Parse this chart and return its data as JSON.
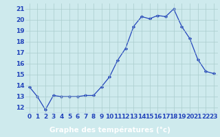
{
  "hours": [
    0,
    1,
    2,
    3,
    4,
    5,
    6,
    7,
    8,
    9,
    10,
    11,
    12,
    13,
    14,
    15,
    16,
    17,
    18,
    19,
    20,
    21,
    22,
    23
  ],
  "temps": [
    13.9,
    13.0,
    11.8,
    13.1,
    13.0,
    13.0,
    13.0,
    13.1,
    13.1,
    13.9,
    14.8,
    16.3,
    17.4,
    19.4,
    20.3,
    20.1,
    20.4,
    20.3,
    21.0,
    19.4,
    18.3,
    16.4,
    15.3,
    15.1
  ],
  "line_color": "#2244bb",
  "marker": "D",
  "marker_size": 2.2,
  "xlabel": "Graphe des températures (°c)",
  "xlabel_color": "#ffffff",
  "xlabel_bg": "#2244bb",
  "ylim": [
    11.5,
    21.5
  ],
  "yticks": [
    12,
    13,
    14,
    15,
    16,
    17,
    18,
    19,
    20,
    21
  ],
  "bg_color": "#ceeaed",
  "grid_color": "#aacccc",
  "tick_color": "#2244bb",
  "label_fontsize": 6.5,
  "axis_label_fontsize": 7.5
}
